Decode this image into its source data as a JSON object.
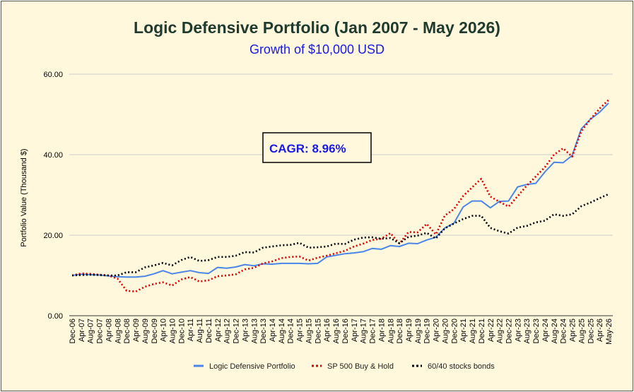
{
  "chart_data": {
    "type": "line",
    "title": "Logic Defensive Portfolio (Jan 2007 - May 2026)",
    "subtitle": "Growth of $10,000 USD",
    "ylabel": "Portfolio Value (Thousand $)",
    "xlabel": "",
    "ylim": [
      0,
      60
    ],
    "yticks": [
      "0.00",
      "20.00",
      "40.00",
      "60.00"
    ],
    "grid": "horizontal",
    "legend": "bottom",
    "annotation": "CAGR: 8.96%",
    "categories": [
      "Dec-06",
      "Apr-07",
      "Aug-07",
      "Dec-07",
      "Apr-08",
      "Aug-08",
      "Dec-08",
      "Apr-09",
      "Aug-09",
      "Dec-09",
      "Apr-10",
      "Aug-10",
      "Dec-10",
      "Apr-11",
      "Aug-11",
      "Dec-11",
      "Apr-12",
      "Aug-12",
      "Dec-12",
      "Apr-13",
      "Aug-13",
      "Dec-13",
      "Apr-14",
      "Aug-14",
      "Dec-14",
      "Apr-15",
      "Aug-15",
      "Dec-15",
      "Apr-16",
      "Aug-16",
      "Dec-16",
      "Apr-17",
      "Aug-17",
      "Dec-17",
      "Apr-18",
      "Aug-18",
      "Dec-18",
      "Apr-19",
      "Aug-19",
      "Dec-19",
      "Apr-20",
      "Aug-20",
      "Dec-20",
      "Apr-21",
      "Aug-21",
      "Dec-21",
      "Apr-22",
      "Aug-22",
      "Dec-22",
      "Apr-23",
      "Aug-23",
      "Dec-23",
      "Apr-24",
      "Aug-24",
      "Dec-24",
      "Apr-25",
      "Aug-25",
      "Dec-25",
      "Apr-26",
      "May-26"
    ],
    "series": [
      {
        "name": "Logic Defensive Portfolio",
        "style": "solid",
        "color": "#4a86e8",
        "values": [
          10.0,
          10.3,
          10.2,
          10.1,
          9.9,
          9.7,
          9.6,
          9.6,
          9.8,
          10.4,
          11.2,
          10.4,
          10.8,
          11.2,
          10.7,
          10.5,
          12.0,
          11.8,
          12.1,
          12.7,
          12.4,
          12.9,
          12.8,
          13.0,
          13.0,
          13.0,
          12.9,
          13.0,
          14.6,
          15.0,
          15.4,
          15.6,
          15.9,
          16.7,
          16.5,
          17.4,
          17.2,
          18.0,
          17.9,
          18.8,
          19.5,
          21.8,
          23.0,
          27.0,
          28.5,
          28.5,
          26.8,
          28.4,
          28.5,
          32.0,
          32.6,
          32.9,
          35.7,
          38.1,
          38.0,
          39.8,
          46.4,
          48.8,
          50.5,
          52.8
        ]
      },
      {
        "name": "SP 500 Buy & Hold",
        "style": "dotted",
        "color": "#e00000",
        "values": [
          10.0,
          10.5,
          10.4,
          10.2,
          10.0,
          9.2,
          6.2,
          6.0,
          7.2,
          7.9,
          8.3,
          7.5,
          9.0,
          9.6,
          8.5,
          8.8,
          9.8,
          10.0,
          10.3,
          11.5,
          11.9,
          13.0,
          13.5,
          14.3,
          14.6,
          14.7,
          13.7,
          14.4,
          14.9,
          15.5,
          16.1,
          17.2,
          17.9,
          18.8,
          19.1,
          20.5,
          17.9,
          20.8,
          20.7,
          22.8,
          20.2,
          24.9,
          26.5,
          29.7,
          31.9,
          34.0,
          29.6,
          28.3,
          27.1,
          29.7,
          32.3,
          34.6,
          36.9,
          40.0,
          41.6,
          39.5,
          45.8,
          48.8,
          51.4,
          53.6
        ]
      },
      {
        "name": "60/40 stocks bonds",
        "style": "dotted",
        "color": "#000000",
        "values": [
          10.0,
          10.1,
          10.2,
          10.1,
          10.0,
          10.0,
          10.8,
          10.8,
          12.0,
          12.5,
          13.1,
          12.5,
          13.8,
          14.6,
          13.6,
          13.8,
          14.6,
          14.6,
          14.9,
          15.8,
          15.7,
          16.9,
          17.2,
          17.5,
          17.6,
          18.1,
          16.9,
          17.0,
          17.2,
          17.9,
          17.8,
          18.9,
          19.4,
          19.5,
          19.1,
          19.3,
          18.0,
          19.6,
          19.9,
          20.6,
          19.2,
          21.7,
          22.9,
          24.0,
          24.8,
          24.8,
          21.8,
          21.0,
          20.4,
          21.9,
          22.3,
          23.2,
          23.6,
          25.2,
          24.8,
          25.2,
          27.2,
          28.1,
          29.2,
          30.2
        ]
      }
    ]
  }
}
